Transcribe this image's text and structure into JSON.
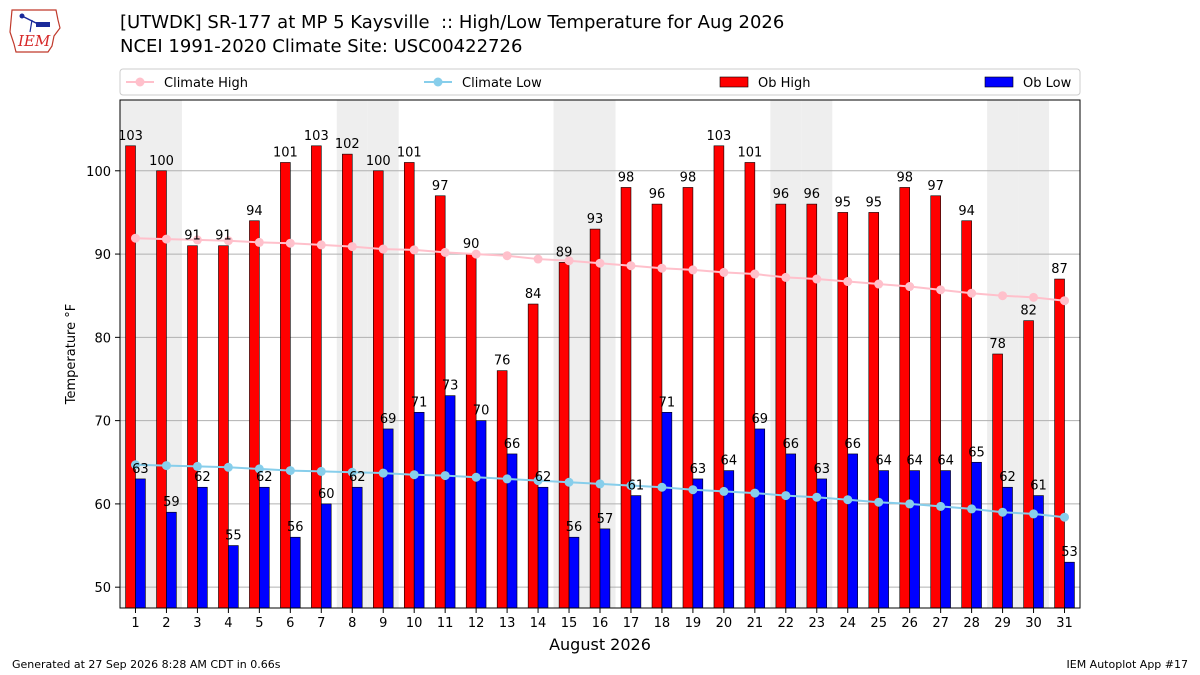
{
  "header": {
    "logo_text": "IEM",
    "title_line1": "[UTWDK] SR-177 at MP 5 Kaysville  :: High/Low Temperature for Aug 2026",
    "title_line2": "NCEI 1991-2020 Climate Site: USC00422726"
  },
  "footer": {
    "generated": "Generated at 27 Sep 2026 8:28 AM CDT in 0.66s",
    "app": "IEM Autoplot App #17"
  },
  "colors": {
    "ob_high": "#ff0000",
    "ob_low": "#0000ff",
    "climate_high": "#ffc0cb",
    "climate_low": "#87ceeb",
    "weekend_band": "#eeeeee",
    "grid": "#b0b0b0"
  },
  "chart_data": {
    "type": "bar",
    "xlabel": "August 2026",
    "ylabel": "Temperature °F",
    "ylim": [
      47.5,
      108.5
    ],
    "yticks": [
      50,
      60,
      70,
      80,
      90,
      100
    ],
    "categories": [
      "1",
      "2",
      "3",
      "4",
      "5",
      "6",
      "7",
      "8",
      "9",
      "10",
      "11",
      "12",
      "13",
      "14",
      "15",
      "16",
      "17",
      "18",
      "19",
      "20",
      "21",
      "22",
      "23",
      "24",
      "25",
      "26",
      "27",
      "28",
      "29",
      "30",
      "31"
    ],
    "legend": [
      "Climate High",
      "Climate Low",
      "Ob High",
      "Ob Low"
    ],
    "legend_position": "top",
    "weekend_days": [
      1,
      2,
      8,
      9,
      15,
      16,
      22,
      23,
      29,
      30
    ],
    "series": [
      {
        "name": "Ob High",
        "kind": "bar",
        "values": [
          103,
          100,
          91,
          91,
          94,
          101,
          103,
          102,
          100,
          101,
          97,
          90,
          76,
          84,
          89,
          93,
          98,
          96,
          98,
          103,
          101,
          96,
          96,
          95,
          95,
          98,
          97,
          94,
          78,
          82,
          87
        ]
      },
      {
        "name": "Ob Low",
        "kind": "bar",
        "values": [
          63,
          59,
          62,
          55,
          62,
          56,
          60,
          62,
          69,
          71,
          73,
          70,
          66,
          62,
          56,
          57,
          61,
          71,
          63,
          64,
          69,
          66,
          63,
          66,
          64,
          64,
          64,
          65,
          62,
          61,
          53
        ]
      },
      {
        "name": "Climate High",
        "kind": "line",
        "values": [
          91.9,
          91.8,
          91.7,
          91.6,
          91.4,
          91.3,
          91.1,
          90.9,
          90.6,
          90.5,
          90.2,
          90.0,
          89.8,
          89.4,
          89.2,
          88.9,
          88.6,
          88.3,
          88.1,
          87.8,
          87.6,
          87.2,
          87.0,
          86.7,
          86.4,
          86.1,
          85.7,
          85.3,
          85.0,
          84.8,
          84.4
        ]
      },
      {
        "name": "Climate Low",
        "kind": "line",
        "values": [
          64.7,
          64.6,
          64.5,
          64.4,
          64.2,
          64.0,
          63.9,
          63.8,
          63.7,
          63.5,
          63.4,
          63.2,
          63.0,
          62.8,
          62.6,
          62.4,
          62.2,
          62.0,
          61.7,
          61.5,
          61.3,
          61.0,
          60.8,
          60.5,
          60.2,
          60.0,
          59.7,
          59.4,
          59.0,
          58.8,
          58.4
        ]
      }
    ]
  }
}
